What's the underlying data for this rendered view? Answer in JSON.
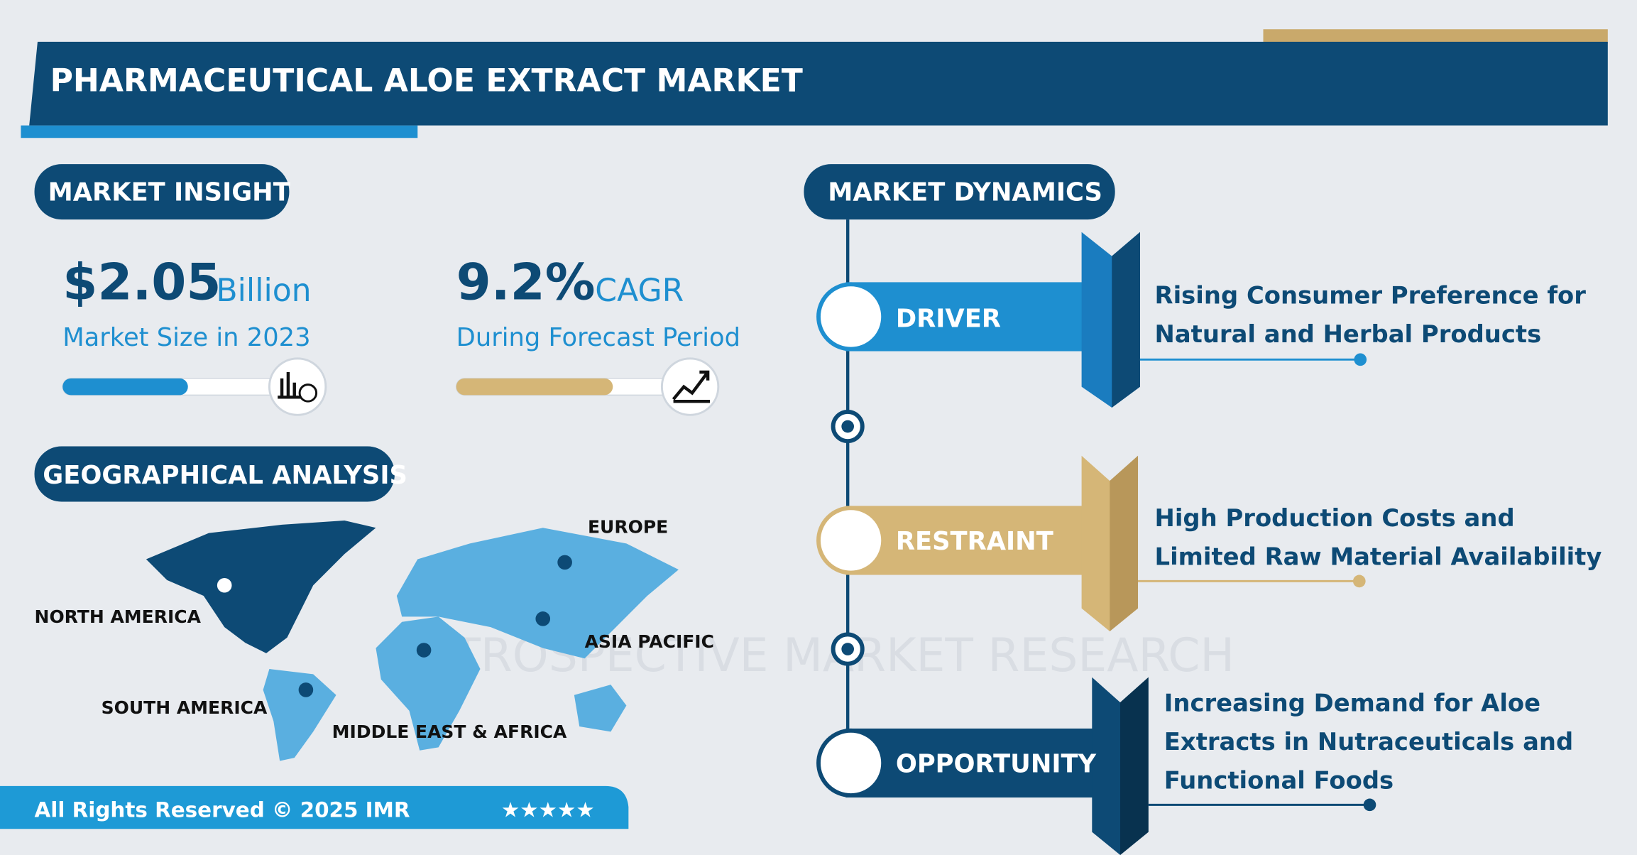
{
  "header": {
    "title": "PHARMACEUTICAL ALOE EXTRACT MARKET"
  },
  "watermark": "INTROSPECTIVE MARKET RESEARCH",
  "market_insight": {
    "heading": "MARKET INSIGHT",
    "market_size": {
      "value": "$2.05",
      "unit": "Billion",
      "label": "Market Size in 2023"
    },
    "cagr": {
      "value": "9.2%",
      "unit": "CAGR",
      "label": "During Forecast Period"
    }
  },
  "geographical_analysis": {
    "heading": "GEOGRAPHICAL ANALYSIS",
    "regions": [
      "NORTH AMERICA",
      "SOUTH AMERICA",
      "MIDDLE EAST & AFRICA",
      "EUROPE",
      "ASIA PACIFIC"
    ]
  },
  "market_dynamics": {
    "heading": "MARKET DYNAMICS",
    "items": [
      {
        "label": "DRIVER",
        "text": [
          "Rising Consumer Preference for",
          "Natural and Herbal Products"
        ]
      },
      {
        "label": "RESTRAINT",
        "text": [
          "High Production Costs and",
          "Limited Raw Material Availability"
        ]
      },
      {
        "label": "OPPORTUNITY",
        "text": [
          "Increasing Demand for Aloe",
          "Extracts in Nutraceuticals and",
          "Functional Foods"
        ]
      }
    ]
  },
  "footer": {
    "copyright": "All Rights Reserved © 2025 IMR",
    "rating": "★★★★★"
  }
}
